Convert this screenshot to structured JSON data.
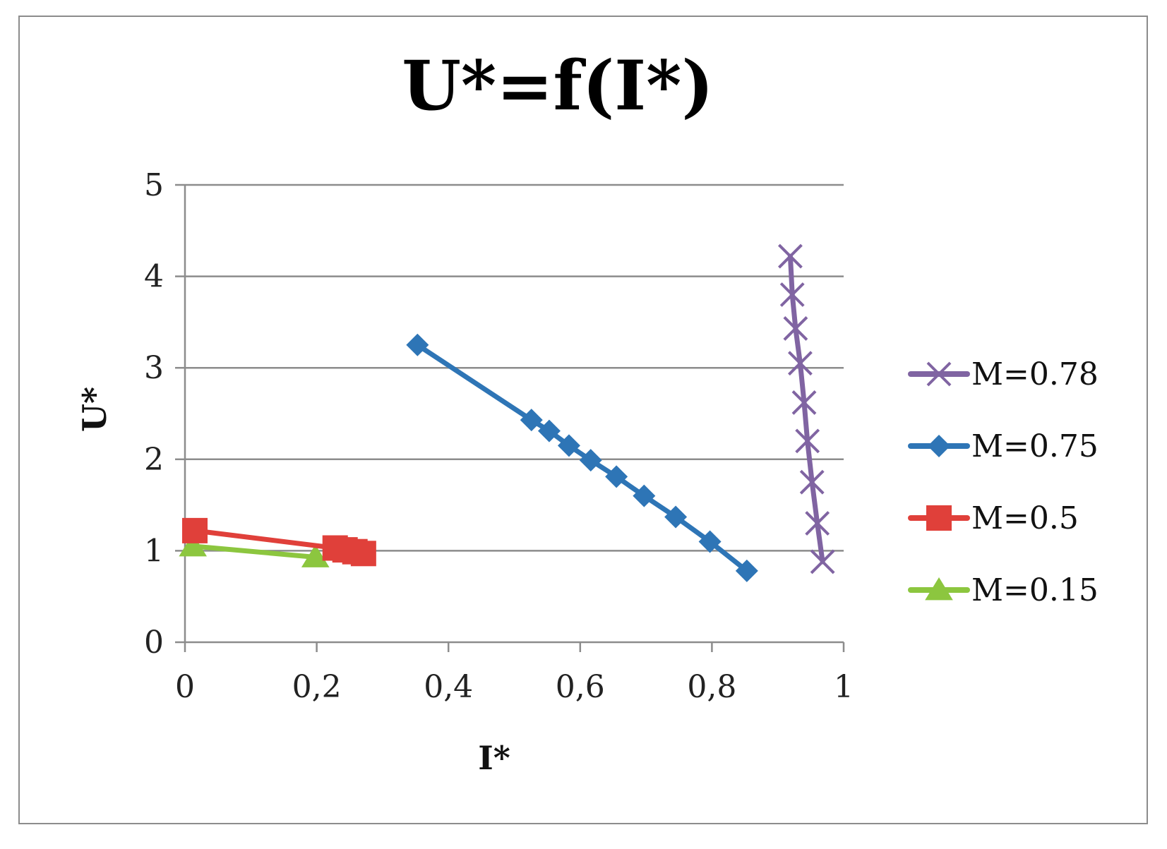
{
  "chart_data": {
    "type": "line",
    "title": "U*=f(I*)",
    "xlabel": "I*",
    "ylabel": "U*",
    "xlim": [
      0,
      1
    ],
    "ylim": [
      0,
      5
    ],
    "x_ticks": [
      "0",
      "0,2",
      "0,4",
      "0,6",
      "0,8",
      "1"
    ],
    "y_ticks": [
      "0",
      "1",
      "2",
      "3",
      "4",
      "5"
    ],
    "grid": "horizontal",
    "legend_position": "right",
    "series": [
      {
        "name": "M=0.78",
        "color": "#8064a2",
        "marker": "x",
        "points": [
          [
            0.919,
            4.22
          ],
          [
            0.922,
            3.8
          ],
          [
            0.927,
            3.43
          ],
          [
            0.934,
            3.05
          ],
          [
            0.94,
            2.62
          ],
          [
            0.945,
            2.2
          ],
          [
            0.952,
            1.75
          ],
          [
            0.96,
            1.3
          ],
          [
            0.968,
            0.88
          ]
        ]
      },
      {
        "name": "M=0.75",
        "color": "#2e75b6",
        "marker": "diamond",
        "points": [
          [
            0.353,
            3.25
          ],
          [
            0.526,
            2.43
          ],
          [
            0.553,
            2.31
          ],
          [
            0.583,
            2.15
          ],
          [
            0.616,
            1.99
          ],
          [
            0.655,
            1.81
          ],
          [
            0.697,
            1.6
          ],
          [
            0.745,
            1.37
          ],
          [
            0.797,
            1.1
          ],
          [
            0.853,
            0.78
          ]
        ]
      },
      {
        "name": "M=0.5",
        "color": "#e0403a",
        "marker": "square",
        "points": [
          [
            0.015,
            1.22
          ],
          [
            0.228,
            1.03
          ],
          [
            0.243,
            1.01
          ],
          [
            0.258,
            0.99
          ],
          [
            0.271,
            0.97
          ]
        ]
      },
      {
        "name": "M=0.15",
        "color": "#8cc63f",
        "marker": "triangle",
        "points": [
          [
            0.012,
            1.05
          ],
          [
            0.198,
            0.93
          ]
        ]
      }
    ]
  }
}
